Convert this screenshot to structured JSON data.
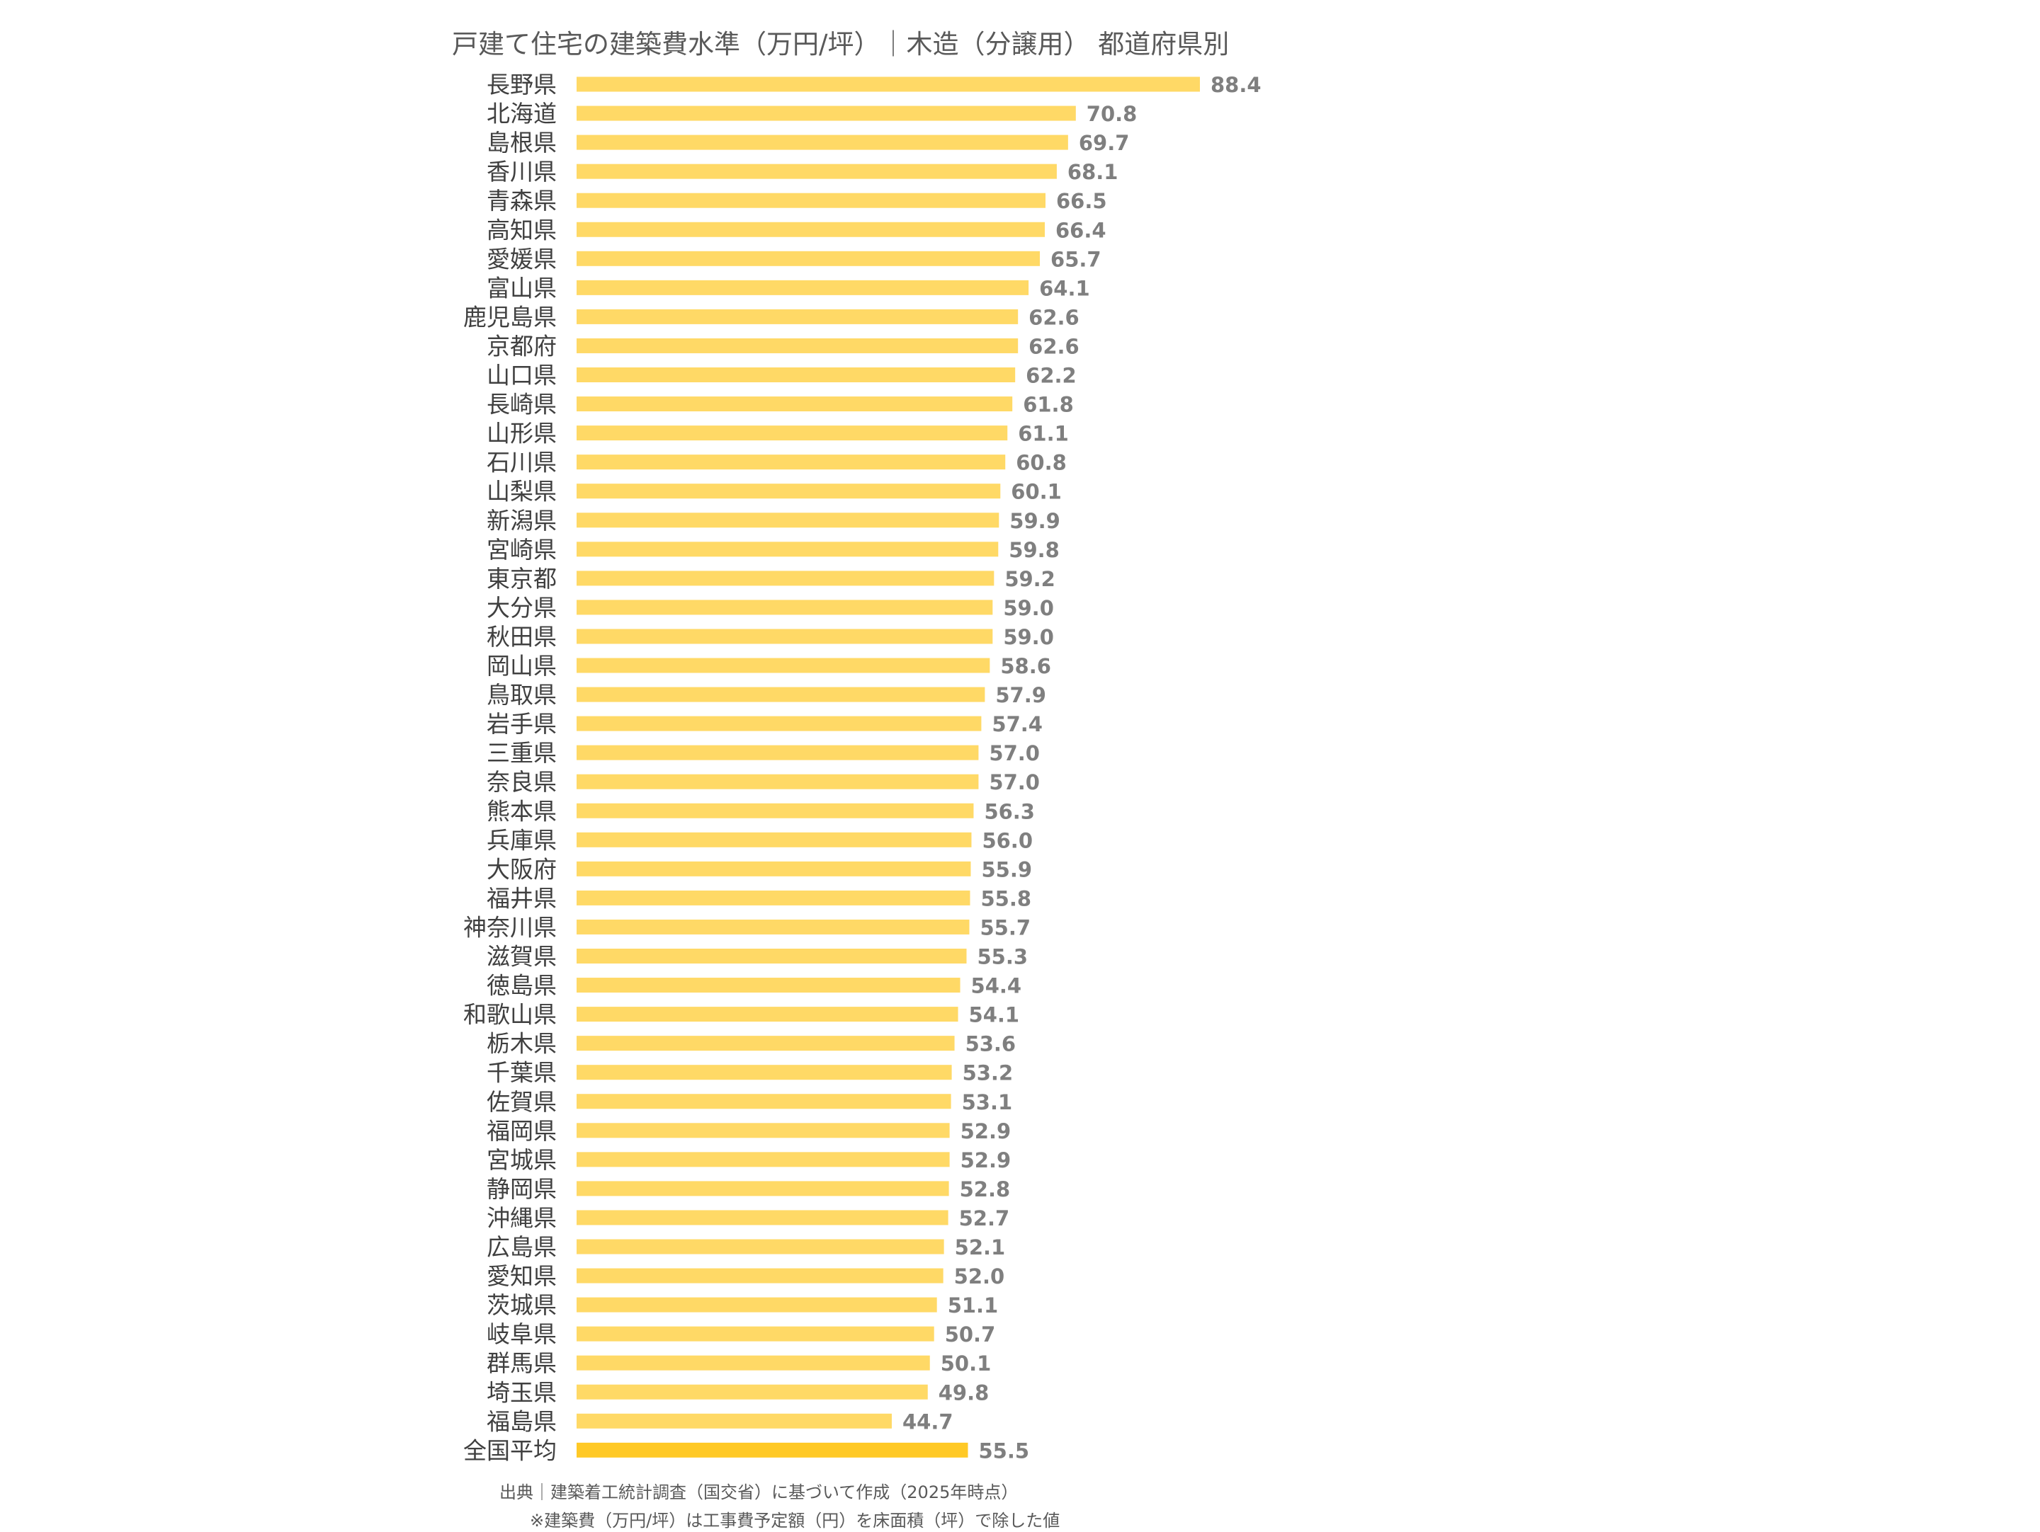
{
  "chart_data": {
    "type": "bar",
    "orientation": "horizontal",
    "title": "戸建て住宅の建築費水準（万円/坪）｜木造（分譲用） 都道府県別",
    "xlabel": "",
    "ylabel": "",
    "xlim": [
      0,
      88.4
    ],
    "grid": false,
    "legend": "none",
    "categories": [
      "長野県",
      "北海道",
      "島根県",
      "香川県",
      "青森県",
      "高知県",
      "愛媛県",
      "富山県",
      "鹿児島県",
      "京都府",
      "山口県",
      "長崎県",
      "山形県",
      "石川県",
      "山梨県",
      "新潟県",
      "宮崎県",
      "東京都",
      "大分県",
      "秋田県",
      "岡山県",
      "鳥取県",
      "岩手県",
      "三重県",
      "奈良県",
      "熊本県",
      "兵庫県",
      "大阪府",
      "福井県",
      "神奈川県",
      "滋賀県",
      "徳島県",
      "和歌山県",
      "栃木県",
      "千葉県",
      "佐賀県",
      "福岡県",
      "宮城県",
      "静岡県",
      "沖縄県",
      "広島県",
      "愛知県",
      "茨城県",
      "岐阜県",
      "群馬県",
      "埼玉県",
      "福島県",
      "全国平均"
    ],
    "values": [
      88.4,
      70.8,
      69.7,
      68.1,
      66.5,
      66.4,
      65.7,
      64.1,
      62.6,
      62.6,
      62.2,
      61.8,
      61.1,
      60.8,
      60.1,
      59.9,
      59.8,
      59.2,
      59.0,
      59.0,
      58.6,
      57.9,
      57.4,
      57.0,
      57.0,
      56.3,
      56.0,
      55.9,
      55.8,
      55.7,
      55.3,
      54.4,
      54.1,
      53.6,
      53.2,
      53.1,
      52.9,
      52.9,
      52.8,
      52.7,
      52.1,
      52.0,
      51.1,
      50.7,
      50.1,
      49.8,
      44.7,
      55.5
    ],
    "value_labels": [
      "88.4",
      "70.8",
      "69.7",
      "68.1",
      "66.5",
      "66.4",
      "65.7",
      "64.1",
      "62.6",
      "62.6",
      "62.2",
      "61.8",
      "61.1",
      "60.8",
      "60.1",
      "59.9",
      "59.8",
      "59.2",
      "59.0",
      "59.0",
      "58.6",
      "57.9",
      "57.4",
      "57.0",
      "57.0",
      "56.3",
      "56.0",
      "55.9",
      "55.8",
      "55.7",
      "55.3",
      "54.4",
      "54.1",
      "53.6",
      "53.2",
      "53.1",
      "52.9",
      "52.9",
      "52.8",
      "52.7",
      "52.1",
      "52.0",
      "51.1",
      "50.7",
      "50.1",
      "49.8",
      "44.7",
      "55.5"
    ],
    "highlight_category": "全国平均",
    "colors": {
      "bar": "#ffd966",
      "highlight_bar": "#ffc926"
    }
  },
  "notes": {
    "source": "出典｜建築着工統計調査（国交省）に基づいて作成（2025年時点）",
    "definition": "※建築費（万円/坪）は工事費予定額（円）を床面積（坪）で除した値"
  }
}
